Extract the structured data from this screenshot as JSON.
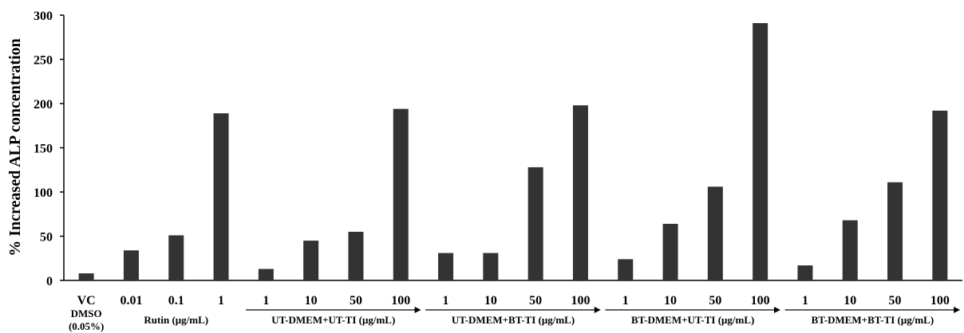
{
  "chart_data": {
    "type": "bar",
    "ylabel": "% Increased ALP concentration",
    "ylim": [
      0,
      300
    ],
    "yticks": [
      "0",
      "50",
      "100",
      "150",
      "200",
      "250",
      "300"
    ],
    "grid": false,
    "bar_color": "#333333",
    "categories": [
      "VC",
      "0.01",
      "0.1",
      "1",
      "1",
      "10",
      "50",
      "100",
      "1",
      "10",
      "50",
      "100",
      "1",
      "10",
      "50",
      "100",
      "1",
      "10",
      "50",
      "100"
    ],
    "values": [
      8,
      34,
      51,
      189,
      13,
      45,
      55,
      194,
      31,
      31,
      128,
      198,
      24,
      64,
      106,
      291,
      17,
      68,
      111,
      192
    ],
    "vc_sublabels": [
      "DMSO",
      "(0.05%)"
    ],
    "groups": [
      {
        "label": "Rutin (μg/mL)",
        "arrow": false,
        "start": 1,
        "end": 3
      },
      {
        "label": "UT-DMEM+UT-TI (μg/mL)",
        "arrow": true,
        "start": 4,
        "end": 7
      },
      {
        "label": "UT-DMEM+BT-TI (μg/mL)",
        "arrow": true,
        "start": 8,
        "end": 11
      },
      {
        "label": "BT-DMEM+UT-TI (μg/mL)",
        "arrow": true,
        "start": 12,
        "end": 15
      },
      {
        "label": "BT-DMEM+BT-TI (μg/mL)",
        "arrow": true,
        "start": 16,
        "end": 19
      }
    ]
  }
}
